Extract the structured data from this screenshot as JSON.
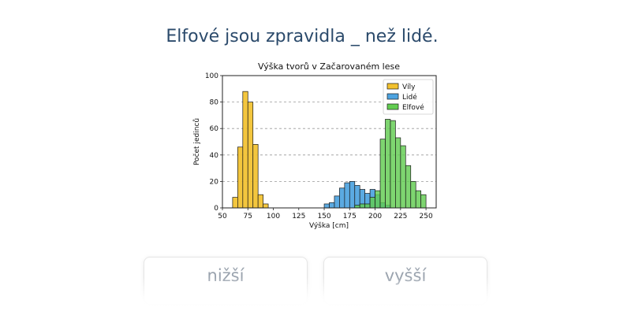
{
  "question": "Elfové jsou zpravidla _ než lidé.",
  "answers": [
    "nižší",
    "vyšší"
  ],
  "chart_data": {
    "type": "histogram",
    "title": "Výška tvorů v Začarovaném lese",
    "xlabel": "Výška [cm]",
    "ylabel": "Počet jedinců",
    "xlim": [
      50,
      260
    ],
    "ylim": [
      0,
      100
    ],
    "x_ticks": [
      50,
      75,
      100,
      125,
      150,
      175,
      200,
      225,
      250
    ],
    "y_ticks": [
      0,
      20,
      40,
      60,
      80,
      100
    ],
    "bin_width": 5,
    "grid": "horizontal dashed",
    "legend": "top-right",
    "series": [
      {
        "name": "Víly",
        "color": "#f2c12e",
        "bins": [
          [
            60,
            8
          ],
          [
            65,
            46
          ],
          [
            70,
            88
          ],
          [
            75,
            80
          ],
          [
            80,
            48
          ],
          [
            85,
            10
          ],
          [
            90,
            3
          ]
        ]
      },
      {
        "name": "Lidé",
        "color": "#4da3e0",
        "bins": [
          [
            150,
            3
          ],
          [
            155,
            4
          ],
          [
            160,
            9
          ],
          [
            165,
            15
          ],
          [
            170,
            19
          ],
          [
            175,
            20
          ],
          [
            180,
            17
          ],
          [
            185,
            14
          ],
          [
            190,
            11
          ],
          [
            195,
            14
          ],
          [
            200,
            10
          ],
          [
            205,
            4
          ],
          [
            210,
            2
          ]
        ]
      },
      {
        "name": "Elfové",
        "color": "#62cc50",
        "bins": [
          [
            180,
            2
          ],
          [
            185,
            3
          ],
          [
            190,
            3
          ],
          [
            195,
            8
          ],
          [
            200,
            13
          ],
          [
            205,
            52
          ],
          [
            210,
            67
          ],
          [
            215,
            66
          ],
          [
            220,
            53
          ],
          [
            225,
            47
          ],
          [
            230,
            32
          ],
          [
            235,
            20
          ],
          [
            240,
            13
          ],
          [
            245,
            10
          ]
        ]
      }
    ]
  }
}
